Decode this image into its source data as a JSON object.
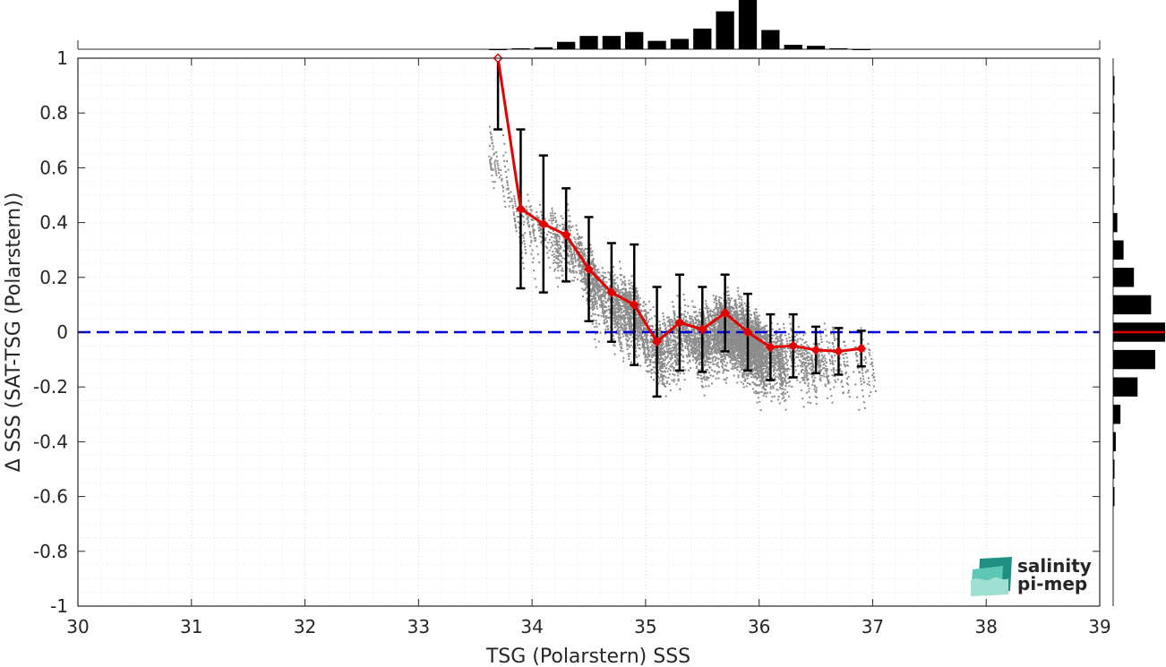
{
  "logo": {
    "line1": "salinity",
    "line2": "pi-mep"
  },
  "chart_data": {
    "type": "scatter",
    "xlabel": "TSG (Polarstern) SSS",
    "ylabel": "Δ SSS (SAT-TSG (Polarstern))",
    "xlim": [
      30,
      39
    ],
    "ylim": [
      -1,
      1
    ],
    "xticks": [
      "30",
      "31",
      "32",
      "33",
      "34",
      "35",
      "36",
      "37",
      "38",
      "39"
    ],
    "yticks": [
      "-1",
      "-0.8",
      "-0.6",
      "-0.4",
      "-0.2",
      "0",
      "0.2",
      "0.4",
      "0.6",
      "0.8",
      "1"
    ],
    "grid": true,
    "reference_line": {
      "y": 0,
      "style": "dashed",
      "color": "#0000dd"
    },
    "colors": {
      "scatter": "#8c8c8c",
      "mean": "#e00000",
      "errorbar": "#000000",
      "histogram": "#000000"
    },
    "series": [
      {
        "type": "scatter-cloud",
        "description_points": []
      },
      {
        "type": "line-errorbar",
        "x": [
          33.7,
          33.9,
          34.1,
          34.3,
          34.5,
          34.7,
          34.9,
          35.1,
          35.3,
          35.5,
          35.7,
          35.9,
          36.1,
          36.3,
          36.5,
          36.7,
          36.9
        ],
        "y": [
          1.0,
          0.45,
          0.395,
          0.355,
          0.23,
          0.145,
          0.1,
          -0.035,
          0.035,
          0.01,
          0.07,
          0.0,
          -0.055,
          -0.05,
          -0.065,
          -0.07,
          -0.06
        ],
        "err": [
          0.26,
          0.29,
          0.25,
          0.17,
          0.19,
          0.18,
          0.22,
          0.2,
          0.175,
          0.155,
          0.14,
          0.14,
          0.12,
          0.115,
          0.085,
          0.085,
          0.065
        ]
      }
    ],
    "top_histogram": {
      "bin_centers": [
        33.7,
        33.9,
        34.1,
        34.3,
        34.5,
        34.7,
        34.9,
        35.1,
        35.3,
        35.5,
        35.7,
        35.9,
        36.1,
        36.3,
        36.5,
        36.7,
        36.9
      ],
      "relative_heights": [
        0.0,
        0.02,
        0.04,
        0.15,
        0.27,
        0.27,
        0.35,
        0.17,
        0.21,
        0.42,
        0.77,
        1.0,
        0.39,
        0.09,
        0.07,
        0.02,
        0.0
      ]
    },
    "right_histogram": {
      "bin_centers": [
        0.9,
        0.8,
        0.7,
        0.6,
        0.5,
        0.4,
        0.3,
        0.2,
        0.1,
        0.0,
        -0.1,
        -0.2,
        -0.3,
        -0.4,
        -0.5,
        -0.6
      ],
      "relative_heights": [
        0.01,
        0.01,
        0.01,
        0.01,
        0.02,
        0.08,
        0.2,
        0.4,
        0.73,
        1.0,
        0.81,
        0.47,
        0.14,
        0.05,
        0.01,
        0.01
      ],
      "median_marker_y": 0
    }
  }
}
